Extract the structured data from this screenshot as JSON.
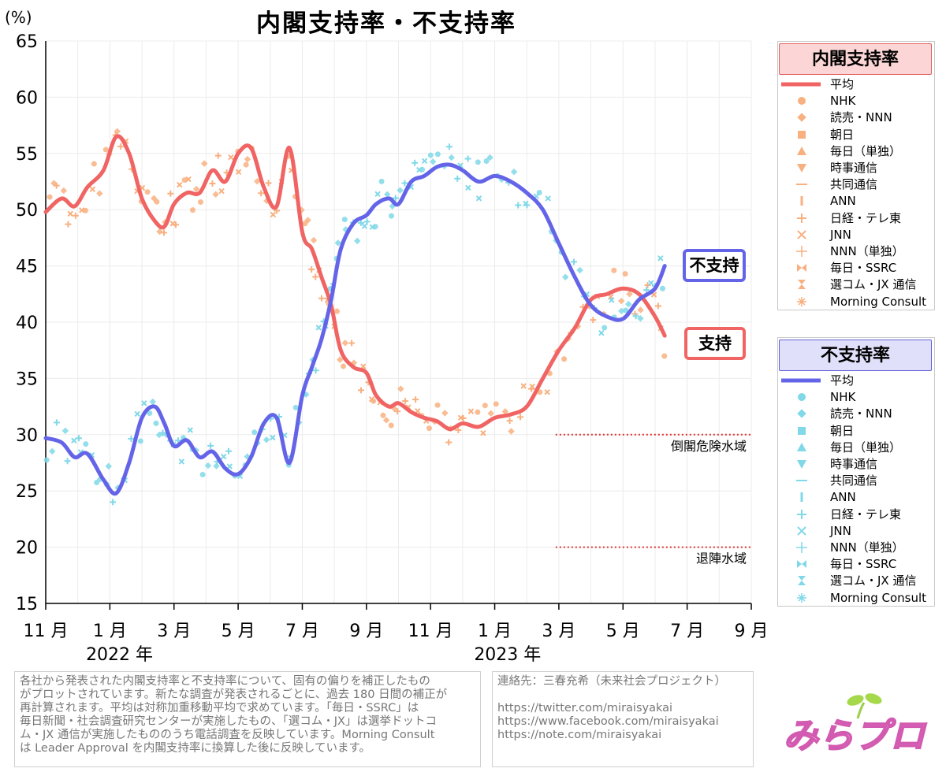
{
  "title": "内閣支持率・不支持率",
  "y_unit": "(%)",
  "chart_data": {
    "type": "line",
    "title": "内閣支持率・不支持率",
    "ylabel": "(%)",
    "ylim": [
      15,
      65
    ],
    "yticks": [
      15,
      20,
      25,
      30,
      35,
      40,
      45,
      50,
      55,
      60,
      65
    ],
    "xlim": [
      0,
      22
    ],
    "xticks": [
      {
        "m": 0,
        "label": "11 月"
      },
      {
        "m": 2,
        "label": "1 月"
      },
      {
        "m": 4,
        "label": "3 月"
      },
      {
        "m": 6,
        "label": "5 月"
      },
      {
        "m": 8,
        "label": "7 月"
      },
      {
        "m": 10,
        "label": "9 月"
      },
      {
        "m": 12,
        "label": "11 月"
      },
      {
        "m": 14,
        "label": "1 月"
      },
      {
        "m": 16,
        "label": "3 月"
      },
      {
        "m": 18,
        "label": "5 月"
      },
      {
        "m": 20,
        "label": "7 月"
      },
      {
        "m": 22,
        "label": "9 月"
      }
    ],
    "years": [
      {
        "m": 2.3,
        "label": "2022 年"
      },
      {
        "m": 14.4,
        "label": "2023 年"
      }
    ],
    "thresholds": [
      {
        "y": 30,
        "from": 15.9,
        "label": "倒閣危険水域"
      },
      {
        "y": 20,
        "from": 15.9,
        "label": "退陣水域"
      }
    ],
    "series": [
      {
        "name": "支持 平均",
        "color": "#f06464",
        "x": [
          0,
          0.5,
          0.9,
          1.3,
          1.8,
          2.2,
          2.6,
          3.0,
          3.4,
          3.7,
          4.0,
          4.4,
          4.8,
          5.2,
          5.6,
          6.0,
          6.4,
          6.8,
          7.2,
          7.6,
          8.0,
          8.3,
          8.6,
          8.9,
          9.2,
          9.6,
          10.0,
          10.3,
          10.7,
          11.0,
          11.4,
          11.8,
          12.2,
          12.6,
          13.0,
          13.5,
          14.0,
          14.5,
          15.0,
          15.5,
          16.0,
          16.5,
          17.0,
          17.5,
          18.0,
          18.5,
          19.0,
          19.3
        ],
        "y": [
          49.8,
          51.0,
          50.3,
          52.0,
          53.5,
          56.5,
          55.0,
          51.0,
          49.0,
          48.5,
          50.5,
          51.5,
          51.5,
          53.5,
          52.5,
          55.0,
          55.5,
          52.0,
          50.3,
          55.5,
          48.0,
          46.5,
          44.0,
          41.5,
          37.5,
          36.0,
          35.5,
          33.5,
          32.5,
          32.8,
          32.0,
          31.5,
          31.2,
          30.5,
          31.0,
          30.7,
          31.5,
          31.8,
          32.5,
          35.0,
          37.5,
          39.5,
          42.0,
          42.5,
          43.0,
          42.5,
          40.5,
          38.8
        ]
      },
      {
        "name": "不支持 平均",
        "color": "#6464e8",
        "x": [
          0,
          0.5,
          0.9,
          1.3,
          1.8,
          2.2,
          2.6,
          3.0,
          3.4,
          3.7,
          4.0,
          4.4,
          4.8,
          5.2,
          5.6,
          6.0,
          6.4,
          6.8,
          7.2,
          7.6,
          8.0,
          8.3,
          8.6,
          8.9,
          9.2,
          9.6,
          10.0,
          10.3,
          10.7,
          11.0,
          11.4,
          11.8,
          12.2,
          12.6,
          13.0,
          13.5,
          14.0,
          14.5,
          15.0,
          15.5,
          16.0,
          16.5,
          17.0,
          17.5,
          18.0,
          18.5,
          19.0,
          19.3
        ],
        "y": [
          29.7,
          29.3,
          28.0,
          28.3,
          26.0,
          24.8,
          27.5,
          31.5,
          32.5,
          31.0,
          29.0,
          29.5,
          28.0,
          28.5,
          27.0,
          26.5,
          28.0,
          31.0,
          31.5,
          27.5,
          33.5,
          36.0,
          38.5,
          42.0,
          46.5,
          48.8,
          49.5,
          50.5,
          51.0,
          50.5,
          52.5,
          53.0,
          53.8,
          54.0,
          53.5,
          52.5,
          53.0,
          52.5,
          51.5,
          50.0,
          47.0,
          44.0,
          41.5,
          40.5,
          40.3,
          42.0,
          43.0,
          45.0
        ]
      }
    ]
  },
  "badges": {
    "disapprove": "不支持",
    "approve": "支持"
  },
  "legend_approve": {
    "header": "内閣支持率",
    "items": [
      "平均",
      "NHK",
      "読売・NNN",
      "朝日",
      "毎日（単独）",
      "時事通信",
      "共同通信",
      "ANN",
      "日経・テレ東",
      "JNN",
      "NNN（単独）",
      "毎日・SSRC",
      "選コム・JX 通信",
      "Morning Consult"
    ]
  },
  "legend_disapprove": {
    "header": "不支持率",
    "items": [
      "平均",
      "NHK",
      "読売・NNN",
      "朝日",
      "毎日（単独）",
      "時事通信",
      "共同通信",
      "ANN",
      "日経・テレ東",
      "JNN",
      "NNN（単独）",
      "毎日・SSRC",
      "選コム・JX 通信",
      "Morning Consult"
    ]
  },
  "note": {
    "lines": [
      "各社から発表された内閣支持率と不支持率について、固有の偏りを補正したもの",
      "がプロットされています。新たな調査が発表されるごとに、過去 180 日間の補正が",
      "再計算されます。平均は対称加重移動平均で求めています。「毎日・SSRC」は",
      "毎日新聞・社会調査研究センターが実施したもの、「選コム・JX」は選挙ドットコ",
      "ム・JX 通信が実施したもののうち電話調査を反映しています。Morning Consult",
      "は Leader Approval を内閣支持率に換算した後に反映しています。"
    ]
  },
  "contact": {
    "heading": "連絡先：三春充希（未来社会プロジェクト）",
    "links": [
      "https://twitter.com/miraisyakai",
      "https://www.facebook.com/miraisyakai",
      "https://note.com/miraisyakai"
    ]
  },
  "logo": "みらプロ",
  "colors": {
    "approve": "#f06464",
    "disapprove": "#6464e8",
    "approve_light": "#f8b080",
    "disapprove_light": "#80d8e8",
    "threshold": "#e03030"
  }
}
